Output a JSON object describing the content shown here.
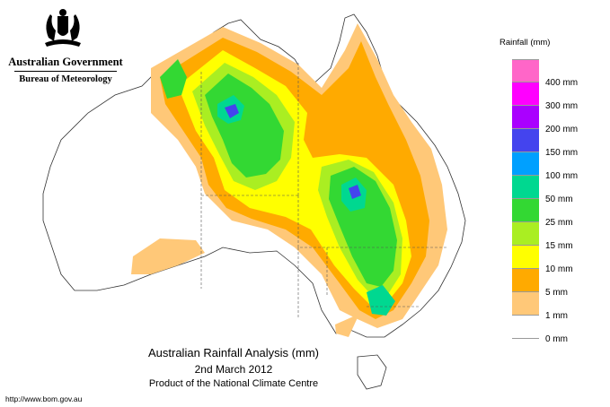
{
  "header": {
    "government": "Australian Government",
    "bureau": "Bureau of Meteorology",
    "crest_icon": "coat-of-arms-icon"
  },
  "map": {
    "title": "Australian Rainfall Analysis (mm)",
    "date": "2nd March 2012",
    "product": "Product of the National Climate Centre",
    "url": "http://www.bom.gov.au"
  },
  "legend": {
    "title": "Rainfall (mm)",
    "items": [
      {
        "label": "",
        "color": "#ff66c8"
      },
      {
        "label": "400 mm",
        "color": "#ff00ff"
      },
      {
        "label": "300 mm",
        "color": "#aa00ff"
      },
      {
        "label": "200 mm",
        "color": "#4444ee"
      },
      {
        "label": "150 mm",
        "color": "#00a0ff"
      },
      {
        "label": "100 mm",
        "color": "#00d890"
      },
      {
        "label": "50 mm",
        "color": "#33d833"
      },
      {
        "label": "25 mm",
        "color": "#aaee22"
      },
      {
        "label": "15 mm",
        "color": "#ffff00"
      },
      {
        "label": "10 mm",
        "color": "#ffaa00"
      },
      {
        "label": "5 mm",
        "color": "#ffc878"
      },
      {
        "label": "1 mm",
        "color": "#ffffff"
      },
      {
        "label": "0 mm",
        "color": ""
      }
    ]
  }
}
